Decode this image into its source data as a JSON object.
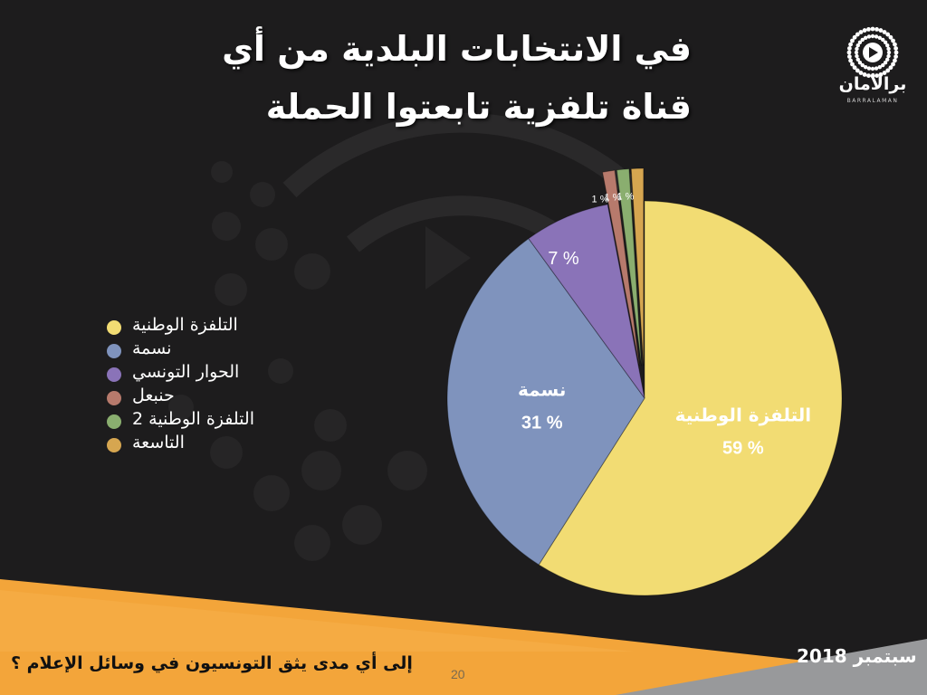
{
  "title": {
    "line1": "في الانتخابات البلدية من أي",
    "line2": "قناة تلفزية تابعتوا الحملة"
  },
  "logo": {
    "name": "برالأمان",
    "sub": "BARRALAMAN",
    "icon": "play-radio-icon"
  },
  "footer": {
    "subtitle": "إلى أي مدى يثق التونسيون في وسائل الإعلام ؟",
    "page_number": "20",
    "date": "سبتمبر 2018"
  },
  "colors": {
    "accent": "#f2a33a",
    "grey_band": "#98999b",
    "background": "#1d1c1d"
  },
  "chart_data": {
    "type": "pie",
    "slices": [
      {
        "label": "التلفزة الوطنية",
        "value": 59,
        "value_label": "59 %",
        "color": "#f2dc73",
        "show_name": true
      },
      {
        "label": "نسمة",
        "value": 31,
        "value_label": "31 %",
        "color": "#7f93bd",
        "show_name": true
      },
      {
        "label": "الحوار التونسي",
        "value": 7,
        "value_label": "7 %",
        "color": "#8a73b8",
        "show_name": false
      },
      {
        "label": "حنبعل",
        "value": 1,
        "value_label": "1 %",
        "color": "#b77a6c",
        "show_name": false,
        "exploded": true
      },
      {
        "label": "التلفزة الوطنية 2",
        "value": 1,
        "value_label": "1 %",
        "color": "#8aae6f",
        "show_name": false,
        "exploded": true
      },
      {
        "label": "التاسعة",
        "value": 1,
        "value_label": "1 %",
        "color": "#d6a650",
        "show_name": false,
        "exploded": true
      }
    ],
    "legend_position": "left"
  }
}
